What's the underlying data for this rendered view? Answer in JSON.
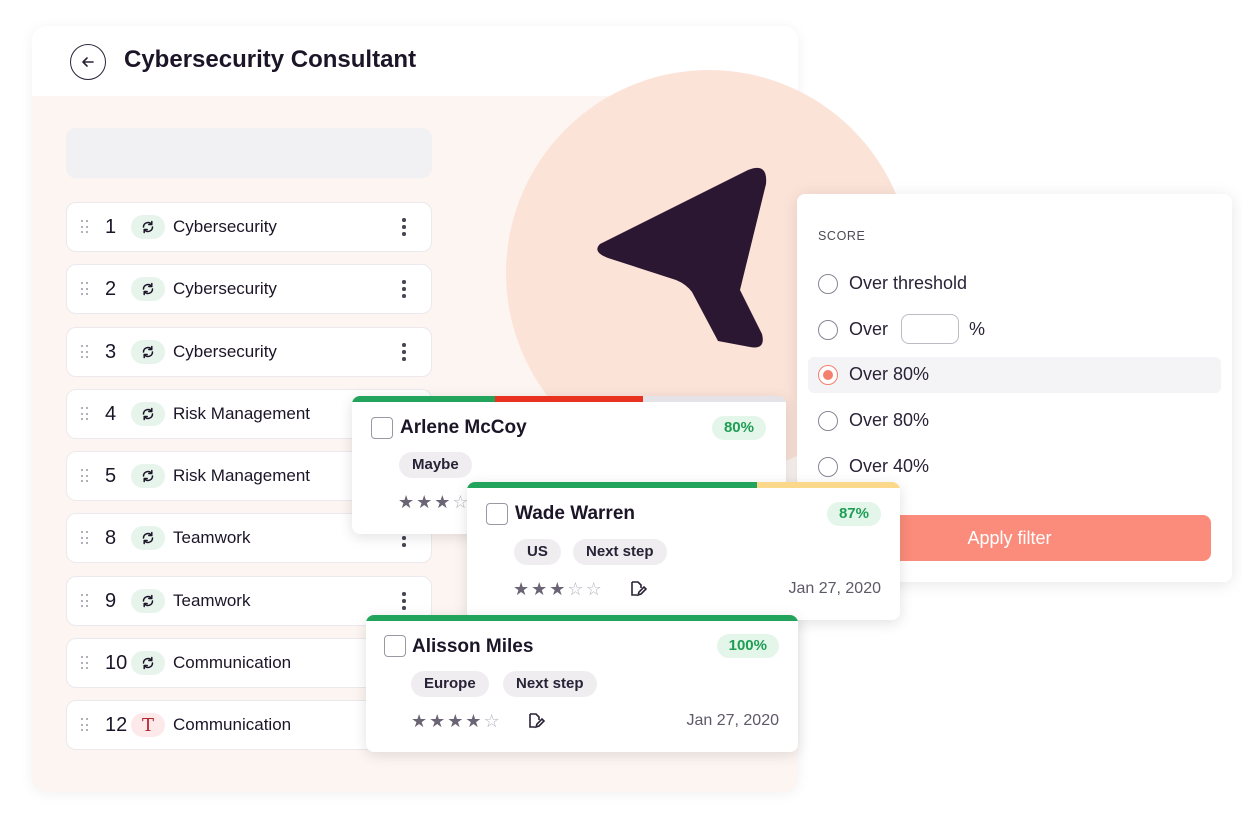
{
  "header": {
    "title": "Cybersecurity Consultant"
  },
  "skills": [
    {
      "num": "1",
      "type": "cycle",
      "label": "Cybersecurity"
    },
    {
      "num": "2",
      "type": "cycle",
      "label": "Cybersecurity"
    },
    {
      "num": "3",
      "type": "cycle",
      "label": "Cybersecurity"
    },
    {
      "num": "4",
      "type": "cycle",
      "label": "Risk Management"
    },
    {
      "num": "5",
      "type": "cycle",
      "label": "Risk Management"
    },
    {
      "num": "8",
      "type": "cycle",
      "label": "Teamwork"
    },
    {
      "num": "9",
      "type": "cycle",
      "label": "Teamwork"
    },
    {
      "num": "10",
      "type": "cycle",
      "label": "Communication"
    },
    {
      "num": "12",
      "type": "text",
      "badge_text": "T",
      "label": "Communication"
    }
  ],
  "filter": {
    "section_label": "SCORE",
    "options": [
      {
        "label": "Over threshold",
        "selected": false
      },
      {
        "label": "Over",
        "suffix": "%",
        "selected": false
      },
      {
        "label": "Over 80%",
        "selected": true
      },
      {
        "label": "Over 80%",
        "selected": false
      },
      {
        "label": "Over 40%",
        "selected": false
      }
    ],
    "apply_label": "Apply filter"
  },
  "candidates": [
    {
      "name": "Arlene McCoy",
      "score": "80%",
      "tags": [
        "Maybe"
      ],
      "rating": 3,
      "bar": [
        {
          "frac": 0.33,
          "color": "#22a45d"
        },
        {
          "frac": 0.34,
          "color": "#e8321f"
        },
        {
          "frac": 0.33,
          "color": "#e6e3e8"
        }
      ]
    },
    {
      "name": "Wade Warren",
      "score": "87%",
      "tags": [
        "US",
        "Next step"
      ],
      "rating": 3,
      "date": "Jan 27, 2020",
      "bar": [
        {
          "frac": 0.67,
          "color": "#22a45d"
        },
        {
          "frac": 0.33,
          "color": "#fbd88a"
        }
      ]
    },
    {
      "name": "Alisson Miles",
      "score": "100%",
      "tags": [
        "Europe",
        "Next step"
      ],
      "rating": 4,
      "date": "Jan 27, 2020",
      "bar": [
        {
          "frac": 1.0,
          "color": "#22a45d"
        }
      ]
    }
  ],
  "colors": {
    "accent": "#fb8b7b",
    "pointer": "#2c1733",
    "blob": "#fbe3d8",
    "score_green": "#1e9e54"
  },
  "icons": [
    "back-arrow-icon",
    "drag-handle-icon",
    "refresh-icon",
    "kebab-menu-icon",
    "filter-pointer-icon",
    "star-icon",
    "note-edit-icon"
  ]
}
